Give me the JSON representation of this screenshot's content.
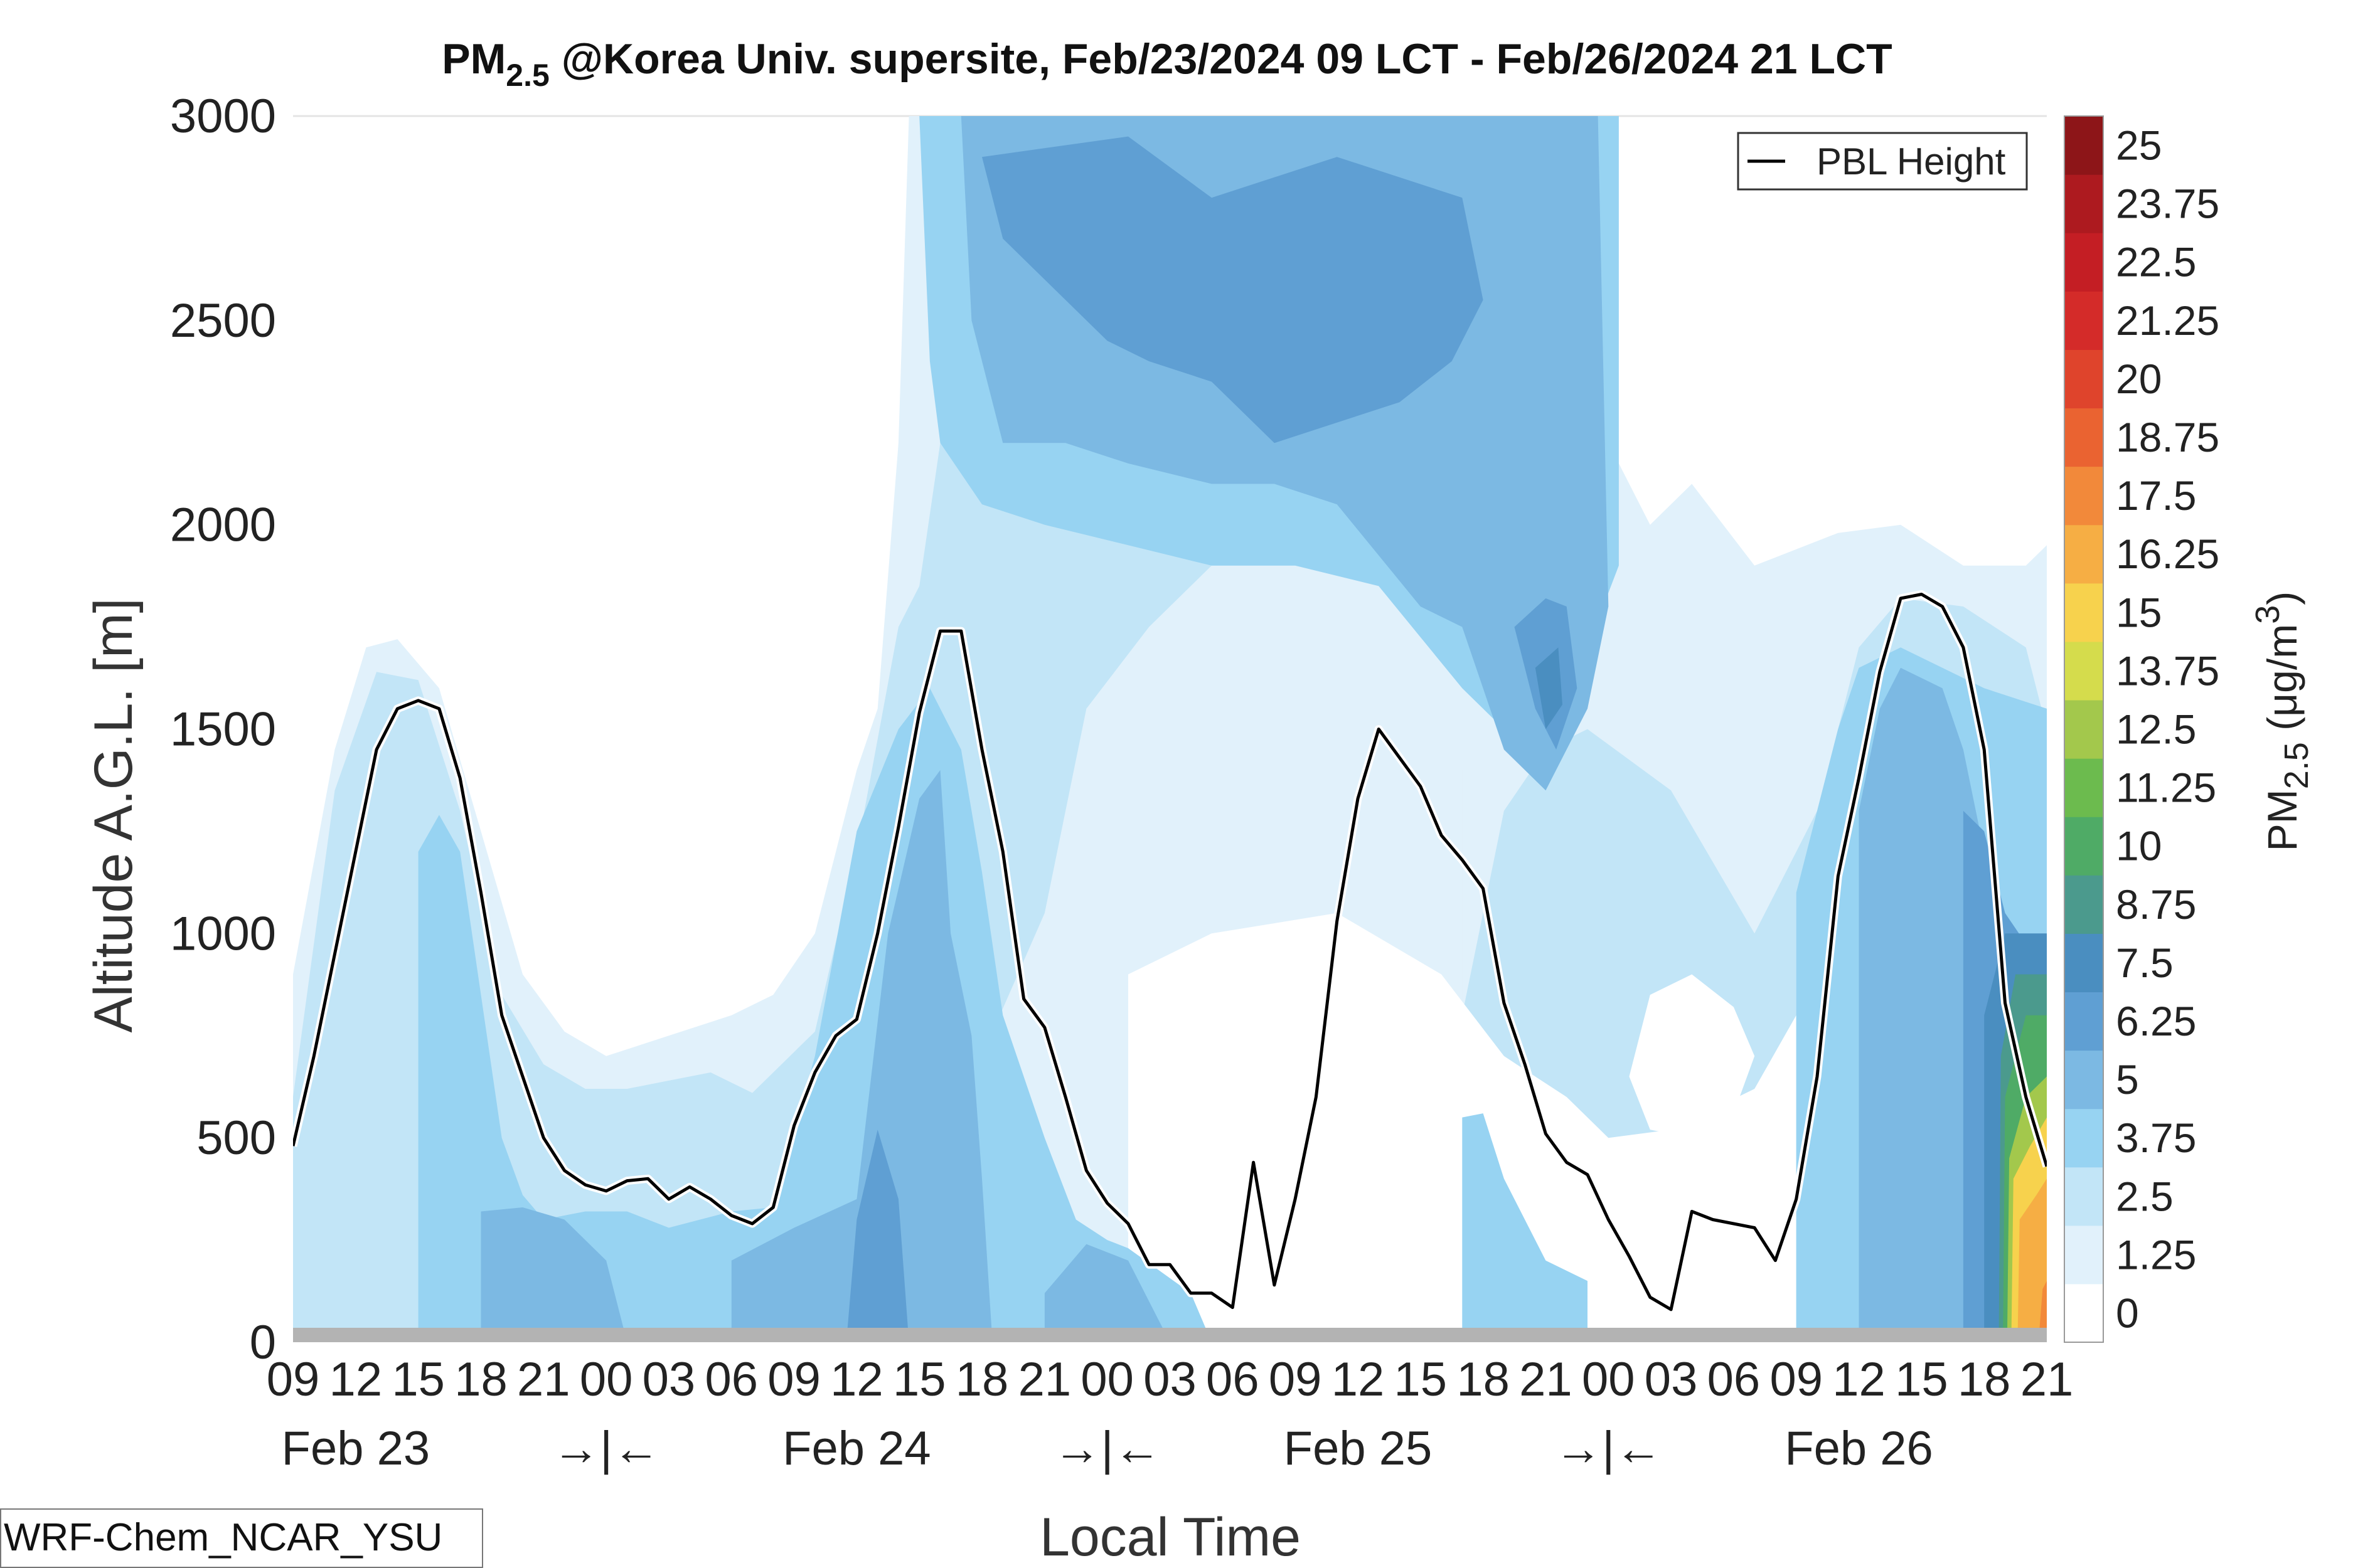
{
  "chart_data": {
    "type": "contour",
    "title_main": "PM",
    "title_sub": "2.5",
    "title_rest": " @Korea Univ. supersite, Feb/23/2024 09 LCT - Feb/26/2024 21 LCT",
    "xlabel": "Local Time",
    "ylabel": "Altitude A.G.L. [m]",
    "ylim": [
      0,
      3000
    ],
    "y_ticks": [
      "0",
      "500",
      "1000",
      "1500",
      "2000",
      "2500",
      "3000"
    ],
    "x_range_hours": [
      0,
      84
    ],
    "x_hour_labels": [
      "09",
      "12",
      "15",
      "18",
      "21",
      "00",
      "03",
      "06",
      "09",
      "12",
      "15",
      "18",
      "21",
      "00",
      "03",
      "06",
      "09",
      "12",
      "15",
      "18",
      "21",
      "00",
      "03",
      "06",
      "09",
      "12",
      "15",
      "18",
      "21"
    ],
    "date_labels": [
      {
        "text": "Feb 23",
        "hour": 3
      },
      {
        "text": "→|←",
        "hour": 15
      },
      {
        "text": "Feb 24",
        "hour": 27
      },
      {
        "text": "→|←",
        "hour": 39
      },
      {
        "text": "Feb 25",
        "hour": 51
      },
      {
        "text": "→|←",
        "hour": 63
      },
      {
        "text": "Feb 26",
        "hour": 75
      }
    ],
    "colorbar": {
      "label_main": "PM",
      "label_sub": "2.5",
      "label_unit": " (μg/m",
      "label_sup": "3",
      "label_close": ")",
      "levels": [
        "0",
        "1.25",
        "2.5",
        "3.75",
        "5",
        "6.25",
        "7.5",
        "8.75",
        "10",
        "11.25",
        "12.5",
        "13.75",
        "15",
        "16.25",
        "17.5",
        "18.75",
        "20",
        "21.25",
        "22.5",
        "23.75",
        "25"
      ],
      "colors": [
        "#ffffff",
        "#e1f1fb",
        "#c2e5f7",
        "#97d3f2",
        "#7cb9e3",
        "#5f9fd3",
        "#4a8ec0",
        "#4b9a8d",
        "#4fab66",
        "#6cbb4e",
        "#a3c84c",
        "#d5dc4c",
        "#f7d24d",
        "#f6ae44",
        "#f2893a",
        "#ea6331",
        "#df442c",
        "#d42b29",
        "#c41e24",
        "#ad1a1f",
        "#8d1518"
      ]
    },
    "legend": {
      "label": "PBL Height",
      "position": "top-right"
    },
    "series": [
      {
        "name": "PBL Height",
        "x": [
          0,
          1,
          2,
          3,
          4,
          5,
          6,
          7,
          8,
          9,
          10,
          11,
          12,
          13,
          14,
          15,
          16,
          17,
          18,
          19,
          20,
          21,
          22,
          23,
          24,
          25,
          26,
          27,
          28,
          29,
          30,
          31,
          32,
          33,
          34,
          35,
          36,
          37,
          38,
          39,
          40,
          41,
          42,
          43,
          44,
          45,
          46,
          47,
          48,
          49,
          50,
          51,
          52,
          53,
          54,
          55,
          56,
          57,
          58,
          59,
          60,
          61,
          62,
          63,
          64,
          65,
          66,
          67,
          68,
          69,
          70,
          71,
          72,
          73,
          74,
          75,
          76,
          77,
          78,
          79,
          80,
          81,
          82,
          83,
          84
        ],
        "y": [
          480,
          700,
          950,
          1200,
          1450,
          1550,
          1570,
          1550,
          1380,
          1100,
          800,
          650,
          500,
          420,
          385,
          370,
          395,
          400,
          350,
          380,
          350,
          310,
          290,
          330,
          530,
          660,
          750,
          790,
          1000,
          1260,
          1540,
          1740,
          1740,
          1450,
          1200,
          840,
          770,
          600,
          420,
          340,
          290,
          190,
          190,
          120,
          120,
          85,
          440,
          140,
          350,
          600,
          1030,
          1330,
          1500,
          1430,
          1360,
          1240,
          1180,
          1110,
          830,
          680,
          510,
          440,
          410,
          300,
          210,
          110,
          80,
          320,
          300,
          290,
          280,
          200,
          350,
          650,
          1140,
          1380,
          1640,
          1820,
          1830,
          1800,
          1700,
          1450,
          830,
          600,
          430
        ]
      }
    ]
  },
  "model_tag": "WRF-Chem_NCAR_YSU"
}
